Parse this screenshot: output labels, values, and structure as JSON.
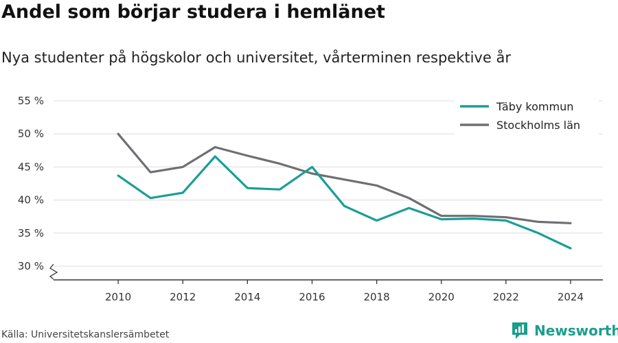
{
  "header": {
    "title": "Andel som börjar studera i hemlänet",
    "subtitle": "Nya studenter på högskolor och universitet, vårterminen respektive år"
  },
  "footer": {
    "source": "Källa: Universitetskanslersämbetet",
    "brand": "Newsworthy"
  },
  "colors": {
    "taby": "#1a9e96",
    "stockholm": "#6e6e73",
    "grid": "#dcdcdc",
    "axis": "#333333",
    "brand": "#1b9e8e"
  },
  "chart_data": {
    "type": "line",
    "title": "Andel som börjar studera i hemlänet",
    "subtitle": "Nya studenter på högskolor och universitet, vårterminen respektive år",
    "x": [
      2010,
      2011,
      2012,
      2013,
      2014,
      2015,
      2016,
      2017,
      2018,
      2019,
      2020,
      2021,
      2022,
      2023,
      2024
    ],
    "series": [
      {
        "name": "Täby kommun",
        "color": "#1a9e96",
        "values": [
          43.7,
          40.3,
          41.1,
          46.6,
          41.8,
          41.6,
          45.0,
          39.1,
          36.9,
          38.8,
          37.1,
          37.2,
          36.9,
          35.0,
          32.7
        ]
      },
      {
        "name": "Stockholms län",
        "color": "#6e6e73",
        "values": [
          50.0,
          44.2,
          45.0,
          48.0,
          46.7,
          45.5,
          44.0,
          43.1,
          42.2,
          40.3,
          37.6,
          37.6,
          37.4,
          36.7,
          36.5
        ]
      }
    ],
    "xticks": [
      2010,
      2012,
      2014,
      2016,
      2018,
      2020,
      2022,
      2024
    ],
    "xtick_labels": [
      "2010",
      "2012",
      "2014",
      "2016",
      "2018",
      "2020",
      "2022",
      "2024"
    ],
    "yticks": [
      30,
      35,
      40,
      45,
      50,
      55
    ],
    "ytick_labels": [
      "30 %",
      "35 %",
      "40 %",
      "45 %",
      "50 %",
      "55 %"
    ],
    "ylim": [
      30,
      55
    ],
    "xlim": [
      2010,
      2024
    ],
    "y_axis_break": true,
    "grid": "horizontal",
    "legend_position": "top-right"
  }
}
